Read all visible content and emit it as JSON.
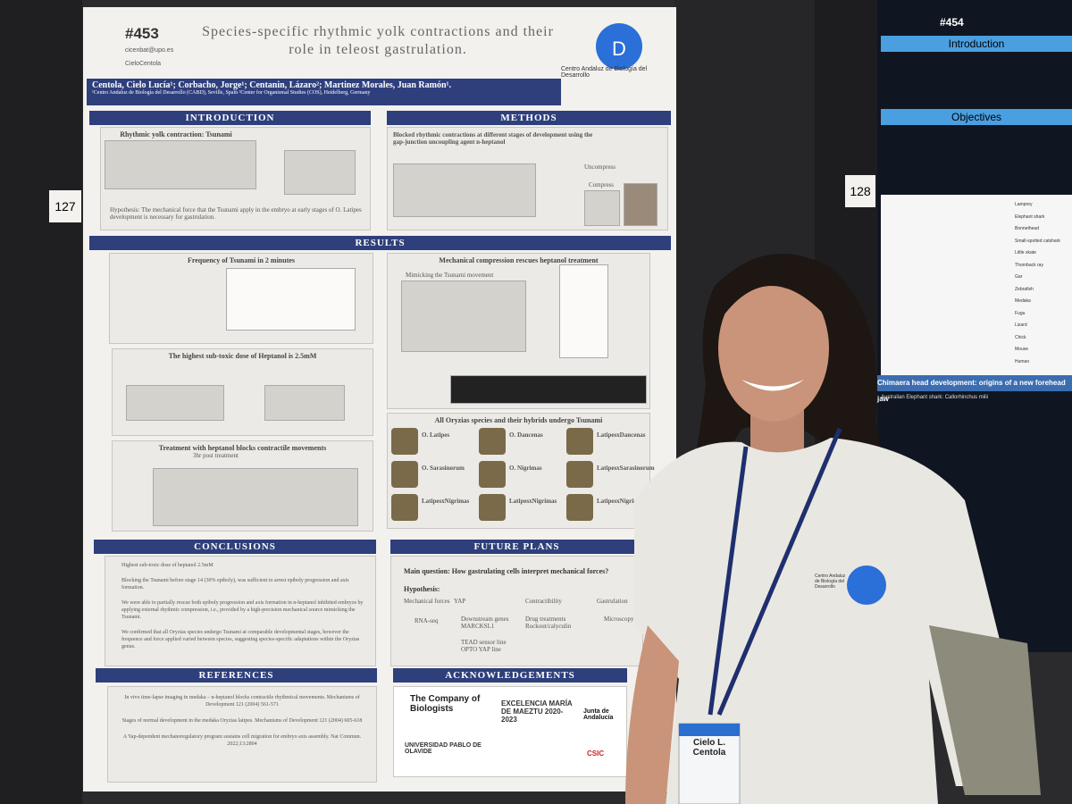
{
  "wall_labels": [
    "127",
    "128"
  ],
  "poster_left": {
    "number": "#453",
    "contact": [
      "cicenbat@upo.es",
      "CieloCentola"
    ],
    "title": "Species-specific rhythmic yolk contractions and their role in teleost gastrulation.",
    "authors": "Centola, Cielo Lucía¹; Corbacho, Jorge¹; Centanin, Lázaro²; Martinez Morales, Juan Ramón¹.",
    "affiliations": "¹Centro Andaluz de Biología del Desarrollo (CABD), Seville, Spain  ²Center for Organismal Studies (COS), Heidelberg, Germany",
    "institute": "Centro Andaluz de Biología del Desarrollo",
    "introduction": {
      "heading": "INTRODUCTION",
      "subtitle": "Rhythmic yolk contraction: Tsunami",
      "hypothesis": "Hypothesis: The mechanical force that the Tsunami apply in the embryo at early stages of O. Latipes development is necessary for gastrulation."
    },
    "methods": {
      "heading": "METHODS",
      "subtitle": "Blocked rhythmic contractions at different stages of development using the gap-junction uncoupling agent n-heptanol",
      "labels": [
        "Uncompress",
        "Compress"
      ]
    },
    "results": {
      "heading": "RESULTS",
      "panels": [
        "Frequency of Tsunami in 2 minutes",
        "The highest sub-toxic dose of Heptanol is 2.5mM",
        "Treatment with heptanol blocks contractile movements",
        "Mechanical compression rescues heptanol treatment",
        "All Oryzias species and their hybrids undergo Tsunami"
      ],
      "mimic": "Mimicking the Tsunami movement",
      "post_treatment": "3hr post treatment",
      "species": [
        "O. Latipes",
        "O. Dancenas",
        "LatipesxDancenas",
        "O. Sarasinorum",
        "O. Nigrimas",
        "LatipesxSarasinorum",
        "LatipesxNigrimas",
        "LatipesxNigrimas",
        "LatipesxNigrimas"
      ]
    },
    "conclusions": {
      "heading": "CONCLUSIONS",
      "items": [
        "Highest sub-toxic dose of heptanol 2.5mM",
        "Blocking the Tsunami before stage 14 (30% epiboly), was sufficient to arrest epiboly progression and axis formation.",
        "We were able to partially rescue both epiboly progression and axis formation in n-heptanol inhibited embryos by applying external rhythmic compression, i.e., provided by a high-precision mechanical source mimicking the Tsunami.",
        "We confirmed that all Oryzias species undergo Tsunami at comparable developmental stages, however the frequence and force applied varied between species, suggesting species-specific adaptations within the Oryzias genus."
      ]
    },
    "future_plans": {
      "heading": "FUTURE PLANS",
      "main_question": "Main question: How gastrulating cells interpret mechanical forces?",
      "hypothesis": "Hypothesis:",
      "nodes": [
        "Mechanical forces",
        "YAP",
        "Contractibility",
        "Gastrulation",
        "RNA-seq",
        "Downstream genes MARCKSL1",
        "Drug treatments Rockout/calyculin",
        "Microscopy",
        "TEAD sensor line OPTO YAP line"
      ]
    },
    "references": {
      "heading": "REFERENCES",
      "items": [
        "In vivo time-lapse imaging in medaka – n-heptanol blocks contractile rhythmical movements. Mechanisms of Development 121 (2004) 561-571",
        "Stages of normal development in the medaka Oryzias latipes. Mechanisms of Development 121 (2004) 605-618",
        "A Yap-dependent mechanoregulatory program sustains cell migration for embryo axis assembly. Nat Commun. 2022;13:2804"
      ]
    },
    "acknowledgements": {
      "heading": "ACKNOWLEDGEMENTS",
      "logos": [
        "The Company of Biologists",
        "EXCELENCIA MARÍA DE MAEZTU 2020-2023",
        "Junta de Andalucía",
        "UNIVERSIDAD PABLO DE OLAVIDE",
        "CSIC"
      ]
    }
  },
  "poster_right": {
    "number": "#454",
    "headings": [
      "Introduction",
      "Objectives"
    ],
    "taxa": [
      "Lamprey",
      "Elephant shark",
      "Bonnethead",
      "Small-spotted catshark",
      "Little skate",
      "Thornback ray",
      "Gar",
      "Zebrafish",
      "Medaka",
      "Fugu",
      "Lizard",
      "Chick",
      "Mouse",
      "Human"
    ],
    "banner": "Chimaera head development: origins of a new forehead jaw",
    "caption": "Australian Elephant shark: Callorhinchus milii"
  },
  "badge": {
    "name": "Cielo L. Centola"
  },
  "shirt": {
    "text": "Centro Andaluz de Biología del Desarrollo"
  }
}
